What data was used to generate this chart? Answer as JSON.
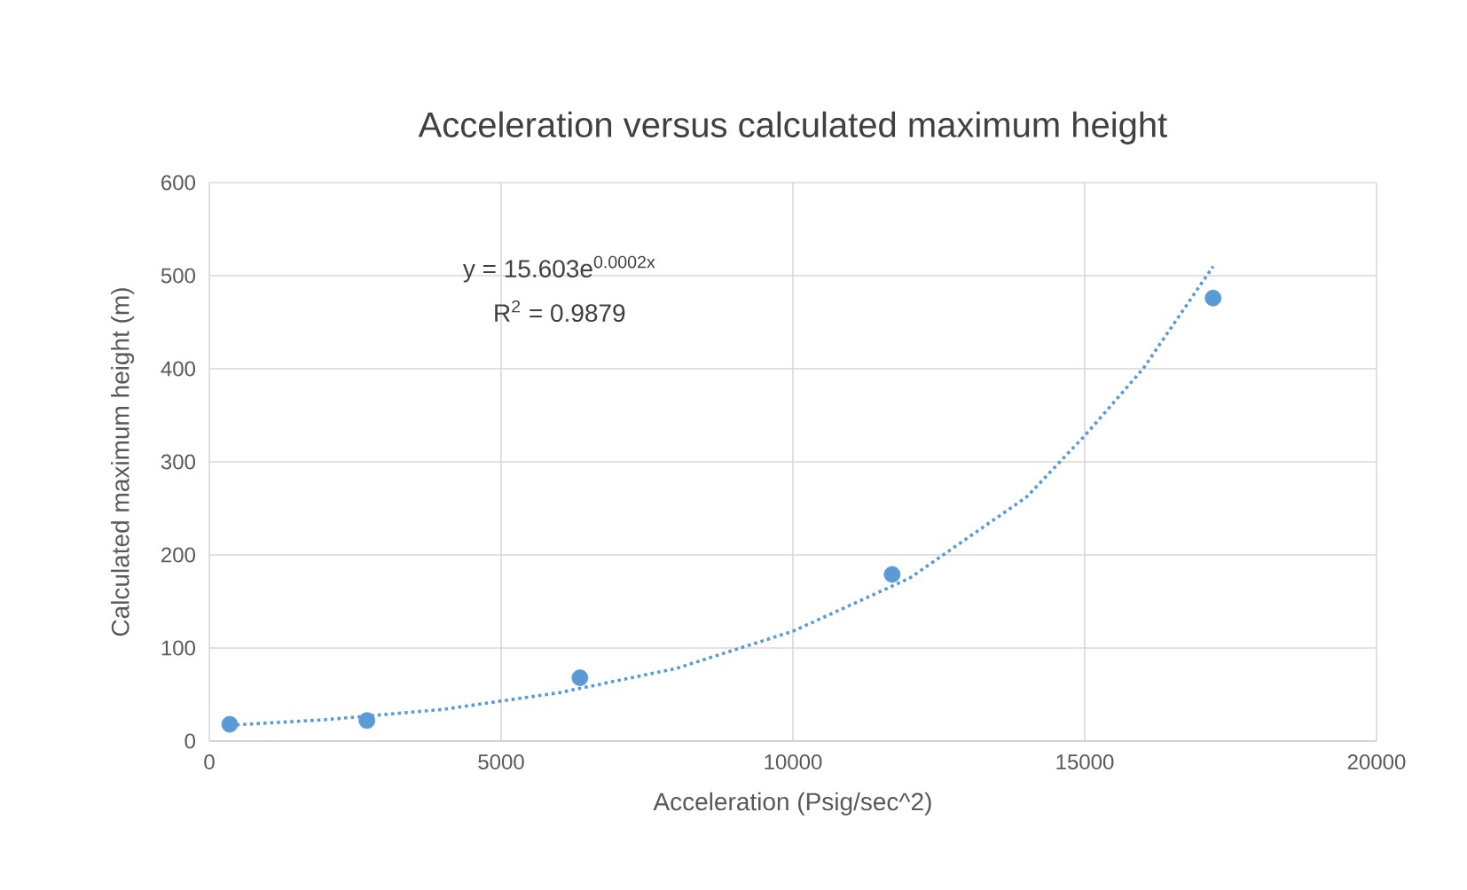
{
  "chart_data": {
    "type": "scatter",
    "title": "Acceleration versus calculated maximum height",
    "xlabel": "Acceleration (Psig/sec^2)",
    "ylabel": "Calculated maximum height (m)",
    "xlim": [
      0,
      20000
    ],
    "xticks": [
      0,
      5000,
      10000,
      15000,
      20000
    ],
    "ylim": [
      0,
      600
    ],
    "yticks": [
      0,
      100,
      200,
      300,
      400,
      500,
      600
    ],
    "grid": true,
    "series": [
      {
        "color": "#5b9bd5",
        "marker": "circle",
        "x": [
          350,
          2700,
          6350,
          11700,
          17200
        ],
        "values": [
          18,
          22,
          68,
          179,
          476
        ]
      },
      {
        "type": "line",
        "color": "#5b9bd5",
        "line_style": "dotted",
        "marker": "none",
        "x": [
          350,
          2000,
          4000,
          6000,
          8000,
          10000,
          12000,
          14000,
          15000,
          16000,
          17200
        ],
        "values": [
          17,
          23,
          34,
          52,
          78,
          118,
          175,
          262,
          328,
          400,
          510
        ]
      }
    ],
    "annotations": [
      "y = 15.603e$^{0.0002x}$",
      "R$^{2}$ = 0.9879"
    ]
  }
}
